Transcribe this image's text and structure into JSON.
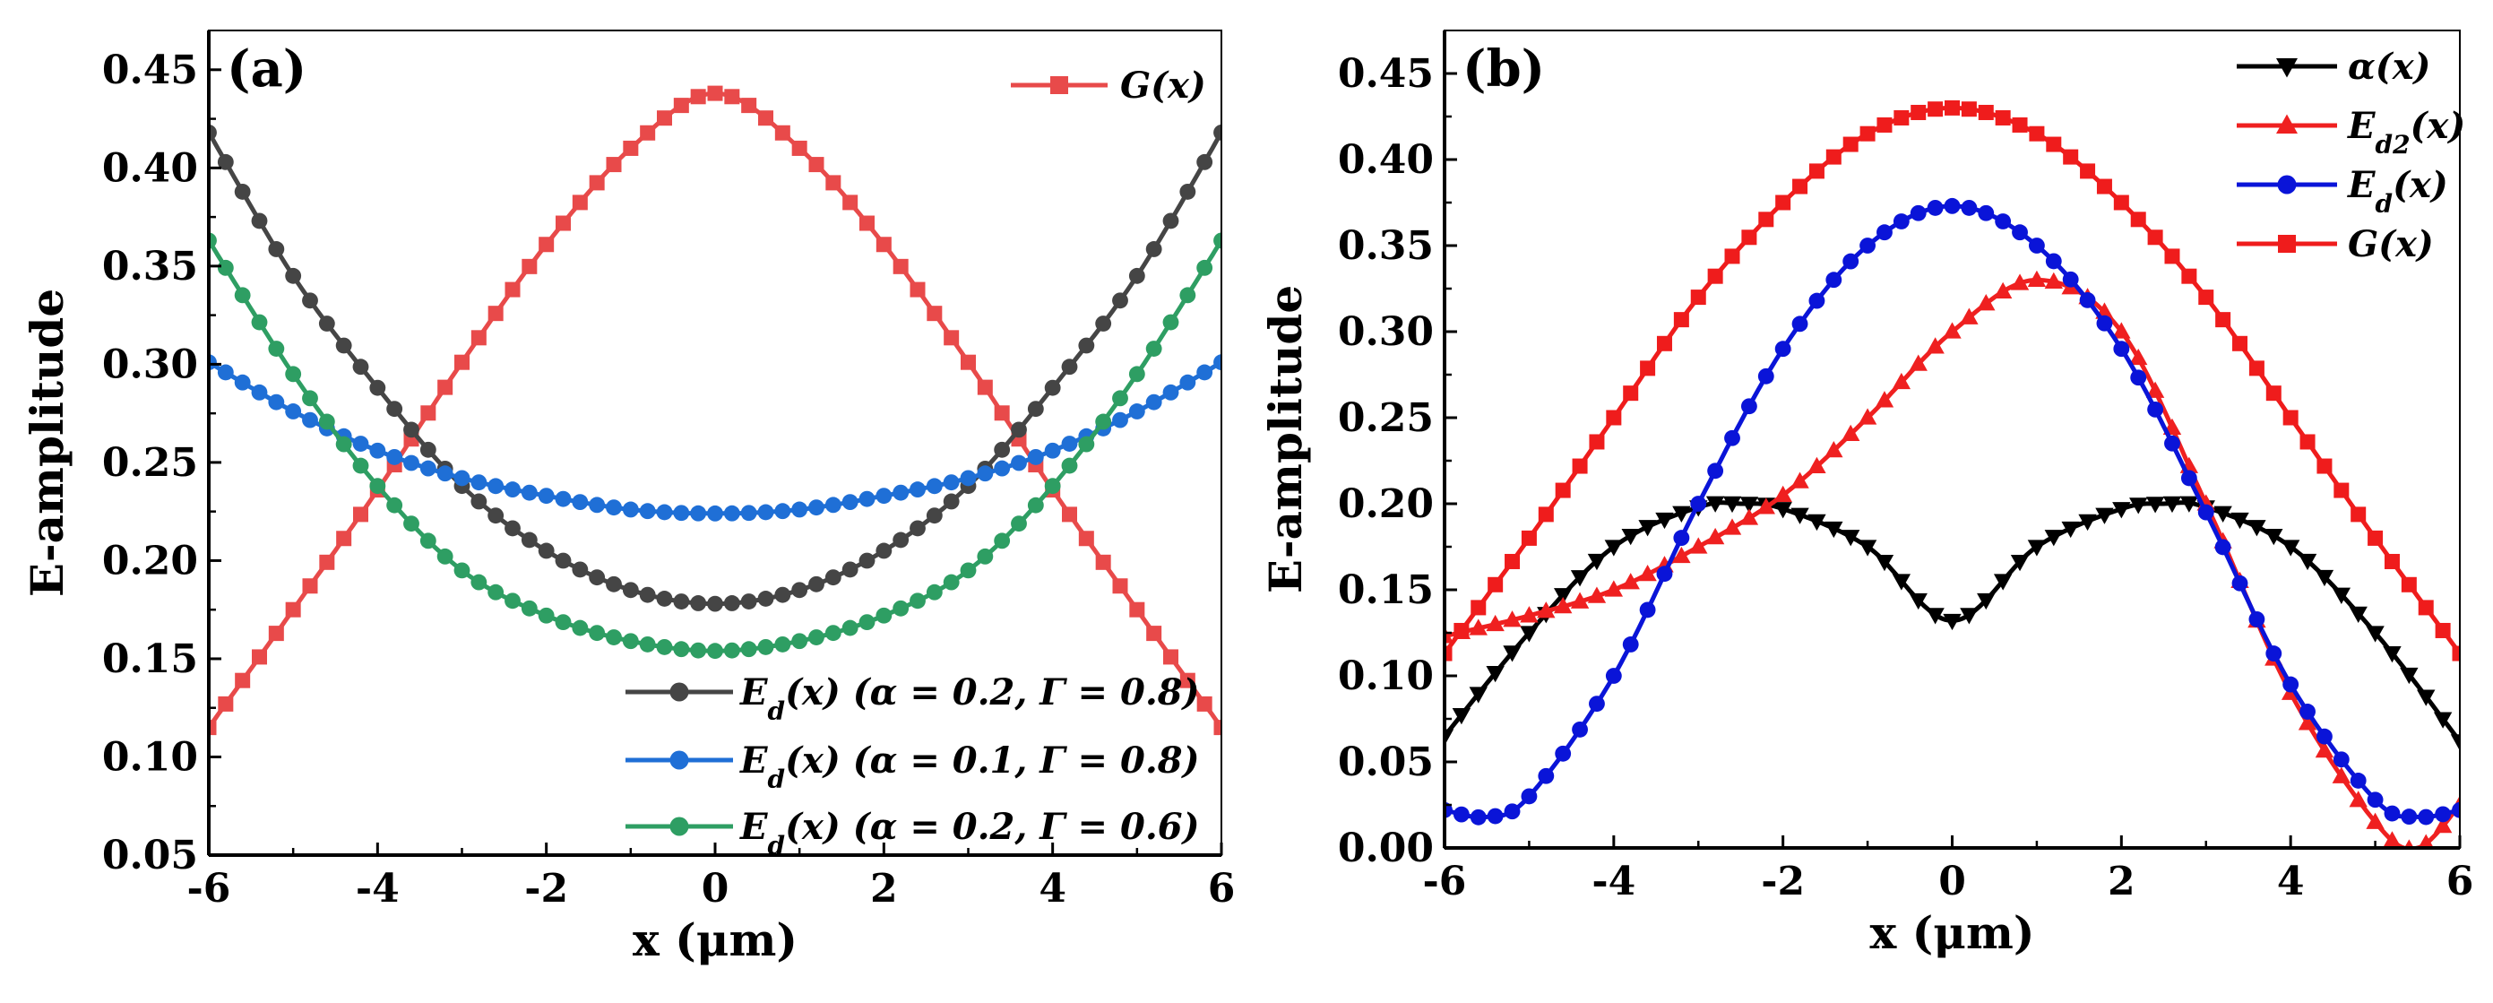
{
  "chart_data": [
    {
      "type": "line",
      "panel_label": "(a)",
      "xlabel": "x (μm)",
      "ylabel": "E-amplitude",
      "xlim": [
        -6,
        6
      ],
      "ylim": [
        0.05,
        0.47
      ],
      "xticks": [
        -6,
        -4,
        -2,
        0,
        2,
        4,
        6
      ],
      "xtick_labels": [
        "-6",
        "-4",
        "-2",
        "0",
        "2",
        "4",
        "6"
      ],
      "yticks": [
        0.05,
        0.1,
        0.15,
        0.2,
        0.25,
        0.3,
        0.35,
        0.4,
        0.45
      ],
      "ytick_labels": [
        "0.05",
        "0.10",
        "0.15",
        "0.20",
        "0.25",
        "0.30",
        "0.35",
        "0.40",
        "0.45"
      ],
      "legends": [
        {
          "position": "top-right",
          "entries": [
            "G(x)"
          ]
        },
        {
          "position": "bottom-right",
          "entries": [
            "Ed(x) (α = 0.2, Γ = 0.8)",
            "Ed(x) (α = 0.1, Γ = 0.8)",
            "Ed(x) (α = 0.2, Γ = 0.6)"
          ]
        }
      ],
      "legend_labels": {
        "g": "G(x)",
        "e1": "(x) (α = 0.2, Γ = 0.8)",
        "e2": "(x) (α = 0.1, Γ = 0.8)",
        "e3": "(x) (α = 0.2, Γ = 0.6)",
        "e_prefix": "E",
        "e_sub": "d"
      },
      "series": [
        {
          "name": "G(x)",
          "color": "#e84a4a",
          "marker": "square",
          "x": [
            -6,
            -5,
            -4,
            -3,
            -2,
            -1,
            0,
            1,
            2,
            3,
            4,
            5,
            6
          ],
          "values": [
            0.115,
            0.175,
            0.236,
            0.301,
            0.361,
            0.41,
            0.438,
            0.41,
            0.361,
            0.301,
            0.236,
            0.175,
            0.115
          ]
        },
        {
          "name": "Ed(x) (α = 0.2, Γ = 0.8)",
          "color": "#454545",
          "marker": "circle",
          "x": [
            -6,
            -5,
            -4,
            -3,
            -2,
            -1,
            0,
            1,
            2,
            3,
            4,
            5,
            6
          ],
          "values": [
            0.418,
            0.345,
            0.288,
            0.238,
            0.205,
            0.185,
            0.178,
            0.185,
            0.205,
            0.238,
            0.288,
            0.345,
            0.418
          ]
        },
        {
          "name": "Ed(x) (α = 0.1, Γ = 0.8)",
          "color": "#1f6fd6",
          "marker": "circle",
          "x": [
            -6,
            -5,
            -4,
            -3,
            -2,
            -1,
            0,
            1,
            2,
            3,
            4,
            5,
            6
          ],
          "values": [
            0.301,
            0.276,
            0.256,
            0.242,
            0.233,
            0.226,
            0.224,
            0.226,
            0.233,
            0.242,
            0.256,
            0.276,
            0.301
          ]
        },
        {
          "name": "Ed(x) (α = 0.2, Γ = 0.6)",
          "color": "#2e9e63",
          "marker": "circle",
          "x": [
            -6,
            -5,
            -4,
            -3,
            -2,
            -1,
            0,
            1,
            2,
            3,
            4,
            5,
            6
          ],
          "values": [
            0.363,
            0.295,
            0.238,
            0.195,
            0.172,
            0.159,
            0.154,
            0.159,
            0.172,
            0.195,
            0.238,
            0.295,
            0.363
          ]
        }
      ]
    },
    {
      "type": "line",
      "panel_label": "(b)",
      "xlabel": "x (μm)",
      "ylabel": "E-amplitude",
      "xlim": [
        -6,
        6
      ],
      "ylim": [
        0.0,
        0.475
      ],
      "xticks": [
        -6,
        -4,
        -2,
        0,
        2,
        4,
        6
      ],
      "xtick_labels": [
        "-6",
        "-4",
        "-2",
        "0",
        "2",
        "4",
        "6"
      ],
      "yticks": [
        0.0,
        0.05,
        0.1,
        0.15,
        0.2,
        0.25,
        0.3,
        0.35,
        0.4,
        0.45
      ],
      "ytick_labels": [
        "0.00",
        "0.05",
        "0.10",
        "0.15",
        "0.20",
        "0.25",
        "0.30",
        "0.35",
        "0.40",
        "0.45"
      ],
      "legends": [
        {
          "position": "top-right",
          "entries": [
            "α(x)",
            "Ed2(x)",
            "Ed(x)",
            "G(x)"
          ]
        }
      ],
      "legend_labels": {
        "alpha": "α(x)",
        "ed2_prefix": "E",
        "ed2_sub": "d2",
        "ed2_suffix": "(x)",
        "ed_prefix": "E",
        "ed_sub": "d",
        "ed_suffix": "(x)",
        "g": "G(x)"
      },
      "series": [
        {
          "name": "α(x)",
          "color": "#000000",
          "marker": "triangle-down",
          "x": [
            -6,
            -5,
            -4,
            -3,
            -2.5,
            -2,
            -1,
            0,
            1,
            2,
            2.5,
            3,
            4,
            5,
            6
          ],
          "values": [
            0.065,
            0.125,
            0.175,
            0.198,
            0.2,
            0.197,
            0.175,
            0.132,
            0.175,
            0.197,
            0.2,
            0.198,
            0.175,
            0.125,
            0.062
          ]
        },
        {
          "name": "Ed2(x)",
          "color": "#ef2020",
          "marker": "triangle-up",
          "x": [
            -6,
            -5,
            -4,
            -3,
            -2,
            -1,
            0,
            1,
            2,
            3,
            4,
            5,
            5.5,
            6
          ],
          "values": [
            0.123,
            0.135,
            0.15,
            0.175,
            0.205,
            0.25,
            0.3,
            0.33,
            0.3,
            0.2,
            0.09,
            0.015,
            0.0,
            0.025
          ]
        },
        {
          "name": "Ed(x)",
          "color": "#0a14d8",
          "marker": "circle",
          "x": [
            -6,
            -5.5,
            -5,
            -4,
            -3,
            -2,
            -1,
            0,
            1,
            2,
            3,
            4,
            5,
            5.5,
            6
          ],
          "values": [
            0.022,
            0.018,
            0.03,
            0.1,
            0.2,
            0.29,
            0.35,
            0.373,
            0.35,
            0.29,
            0.195,
            0.095,
            0.028,
            0.018,
            0.022
          ]
        },
        {
          "name": "G(x)",
          "color": "#ef1c1c",
          "marker": "square",
          "x": [
            -6,
            -5,
            -4,
            -3,
            -2,
            -1,
            0,
            1,
            2,
            3,
            4,
            5,
            6
          ],
          "values": [
            0.113,
            0.18,
            0.25,
            0.32,
            0.375,
            0.415,
            0.43,
            0.415,
            0.375,
            0.32,
            0.25,
            0.18,
            0.113
          ]
        }
      ]
    }
  ]
}
